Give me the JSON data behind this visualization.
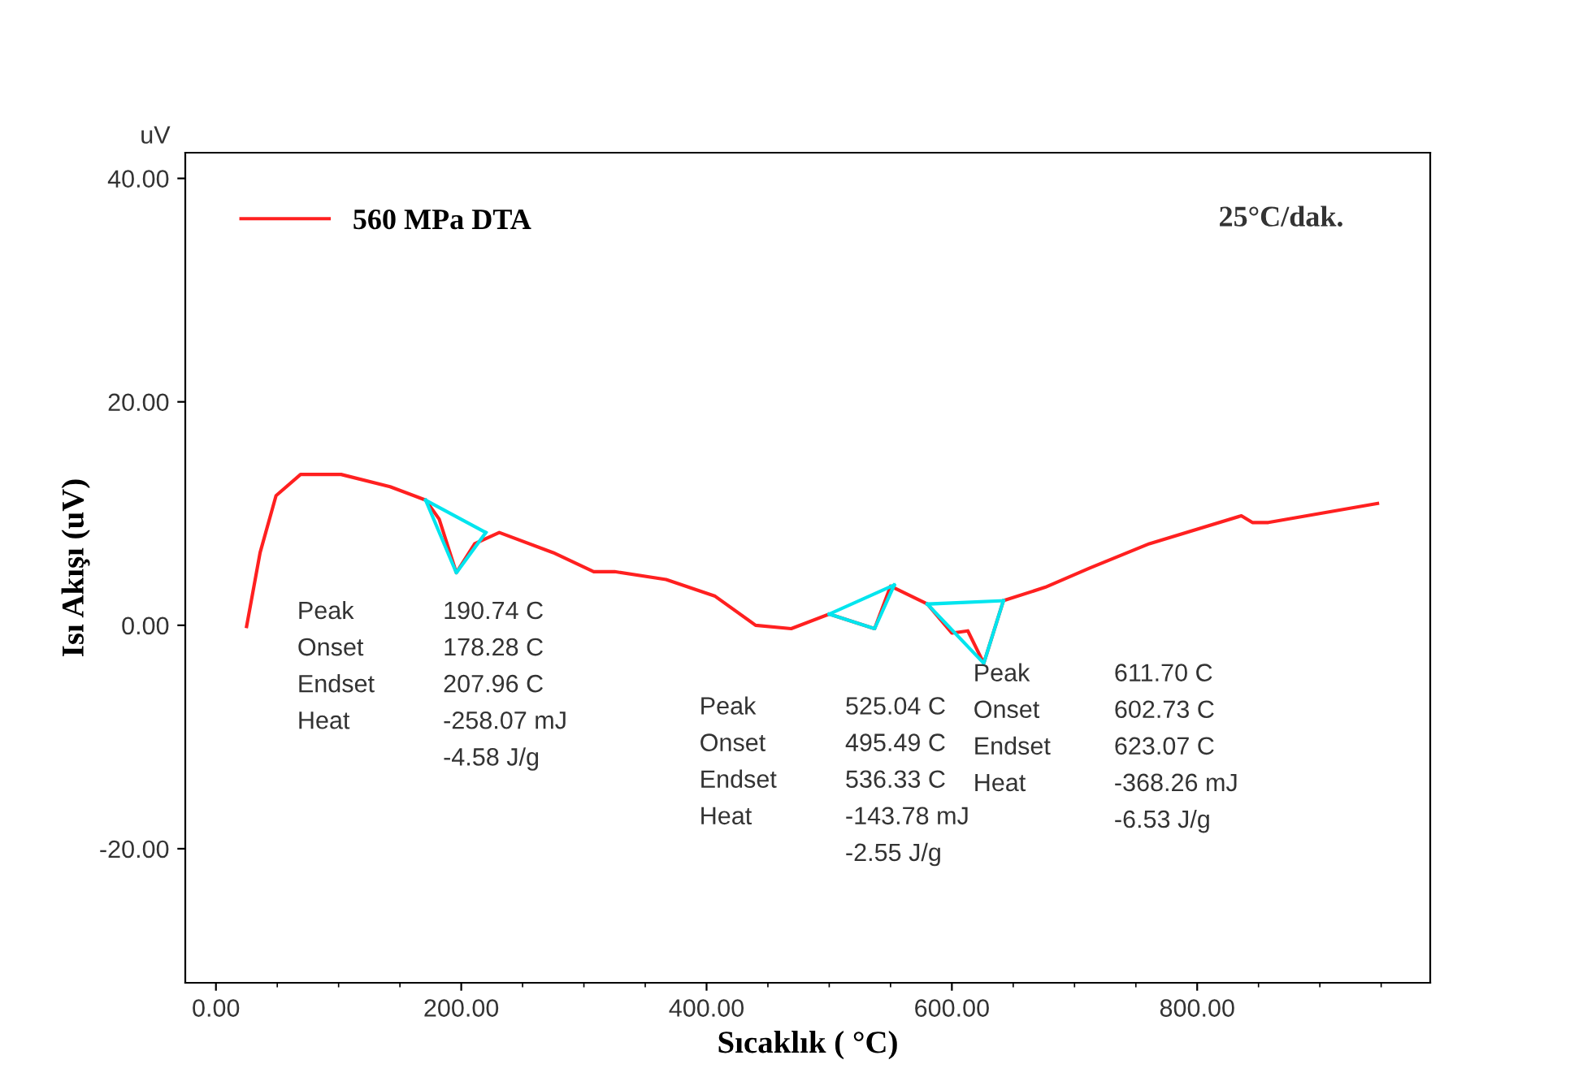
{
  "chart_data": {
    "type": "line",
    "xlabel": "Sıcaklık ( °C)",
    "ylabel": "Isı Akışı (uV)",
    "xlim": [
      -25,
      990
    ],
    "ylim": [
      -32,
      42.3
    ],
    "xticks": [
      {
        "value": 0,
        "label": "0.00"
      },
      {
        "value": 200,
        "label": "200.00"
      },
      {
        "value": 400,
        "label": "400.00"
      },
      {
        "value": 600,
        "label": "600.00"
      },
      {
        "value": 800,
        "label": "800.00"
      }
    ],
    "yticks": [
      {
        "value": -20,
        "label": "-20.00"
      },
      {
        "value": 0,
        "label": "0.00"
      },
      {
        "value": 20,
        "label": "20.00"
      },
      {
        "value": 40,
        "label": "40.00"
      }
    ],
    "grid": false,
    "legend": "top left",
    "marker": "none",
    "line_style": "solid",
    "series": [
      {
        "name": "560 MPa DTA",
        "color": "#ff2020",
        "x": [
          25,
          36,
          49,
          69,
          102,
          142,
          171,
          182,
          196,
          211,
          231,
          275,
          308,
          325,
          367,
          407,
          440,
          469,
          500,
          537,
          550,
          580,
          600,
          613,
          626,
          642,
          676,
          712,
          761,
          836,
          845,
          858,
          947
        ],
        "values": [
          -0.1,
          6.5,
          11.6,
          13.5,
          13.5,
          12.4,
          11.2,
          9.5,
          4.7,
          7.3,
          8.3,
          6.5,
          4.8,
          4.8,
          4.1,
          2.6,
          0,
          -0.3,
          1.0,
          -0.3,
          3.5,
          1.9,
          -0.7,
          -0.5,
          -3.4,
          2.2,
          3.4,
          5.1,
          7.3,
          9.8,
          9.2,
          9.2,
          10.9
        ]
      },
      {
        "color": "#00e5ee",
        "x": [
          171,
          196,
          220
        ],
        "values": [
          11.2,
          4.7,
          8.3
        ]
      },
      {
        "color": "#00e5ee",
        "x": [
          171,
          220
        ],
        "values": [
          11.2,
          8.3
        ]
      },
      {
        "color": "#00e5ee",
        "x": [
          500,
          537,
          553
        ],
        "values": [
          1.0,
          -0.3,
          3.6
        ]
      },
      {
        "color": "#00e5ee",
        "x": [
          500,
          553
        ],
        "values": [
          1.0,
          3.6
        ]
      },
      {
        "color": "#00e5ee",
        "x": [
          580,
          626,
          642
        ],
        "values": [
          1.9,
          -3.4,
          2.2
        ]
      },
      {
        "color": "#00e5ee",
        "x": [
          580,
          642
        ],
        "values": [
          1.9,
          2.2
        ]
      }
    ],
    "annotations": [
      "uV",
      "25°C/dak.",
      "Peak\nOnset\nEndset\nHeat",
      "190.74 C\n178.28 C\n207.96 C\n-258.07 mJ\n-4.58 J/g",
      "Peak\nOnset\nEndset\nHeat",
      "525.04 C\n495.49 C\n536.33 C\n-143.78 mJ\n-2.55 J/g",
      "Peak\nOnset\nEndset\nHeat",
      "611.70 C\n602.73 C\n623.07 C\n-368.26 mJ\n-6.53 J/g"
    ]
  }
}
